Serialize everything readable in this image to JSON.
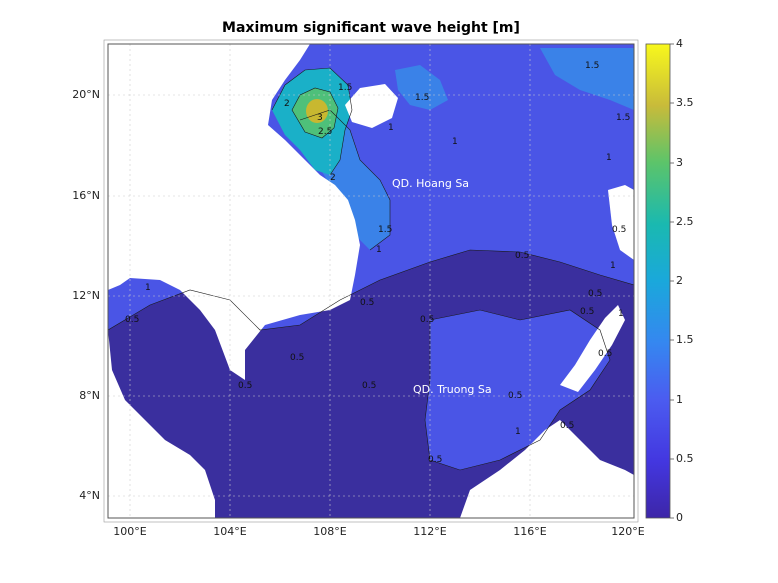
{
  "title": "Maximum significant wave height [m]",
  "colors": {
    "low": "#3a2f9e",
    "mid_low": "#4a56e0",
    "mid": "#3a82e8",
    "mid_high": "#1ab0c8",
    "high": "#4ec07a",
    "peak": "#c8b830",
    "land": "#ffffff",
    "contour": "#1a1a1a"
  },
  "lat_labels": [
    "20°N",
    "16°N",
    "12°N",
    "8°N",
    "4°N"
  ],
  "lon_labels": [
    "100°E",
    "104°E",
    "108°E",
    "112°E",
    "116°E",
    "120°E"
  ],
  "colorbar": {
    "min": 0,
    "max": 4,
    "ticks": [
      "4",
      "3.5",
      "3",
      "2.5",
      "2",
      "1.5",
      "1",
      "0.5",
      "0"
    ]
  },
  "places": {
    "hoang_sa": "QD. Hoang Sa",
    "truong_sa": "QD. Truong Sa"
  },
  "contour_labels": [
    "3",
    "2.5",
    "2",
    "2",
    "1.5",
    "1.5",
    "1.5",
    "1.5",
    "1.5",
    "1",
    "1",
    "1",
    "1",
    "1",
    "1",
    "1",
    "1",
    "0.5",
    "0.5",
    "0.5",
    "0.5",
    "0.5",
    "0.5",
    "0.5",
    "0.5",
    "0.5",
    "0.5",
    "0.5",
    "0.5",
    "0.5",
    "0.5"
  ]
}
